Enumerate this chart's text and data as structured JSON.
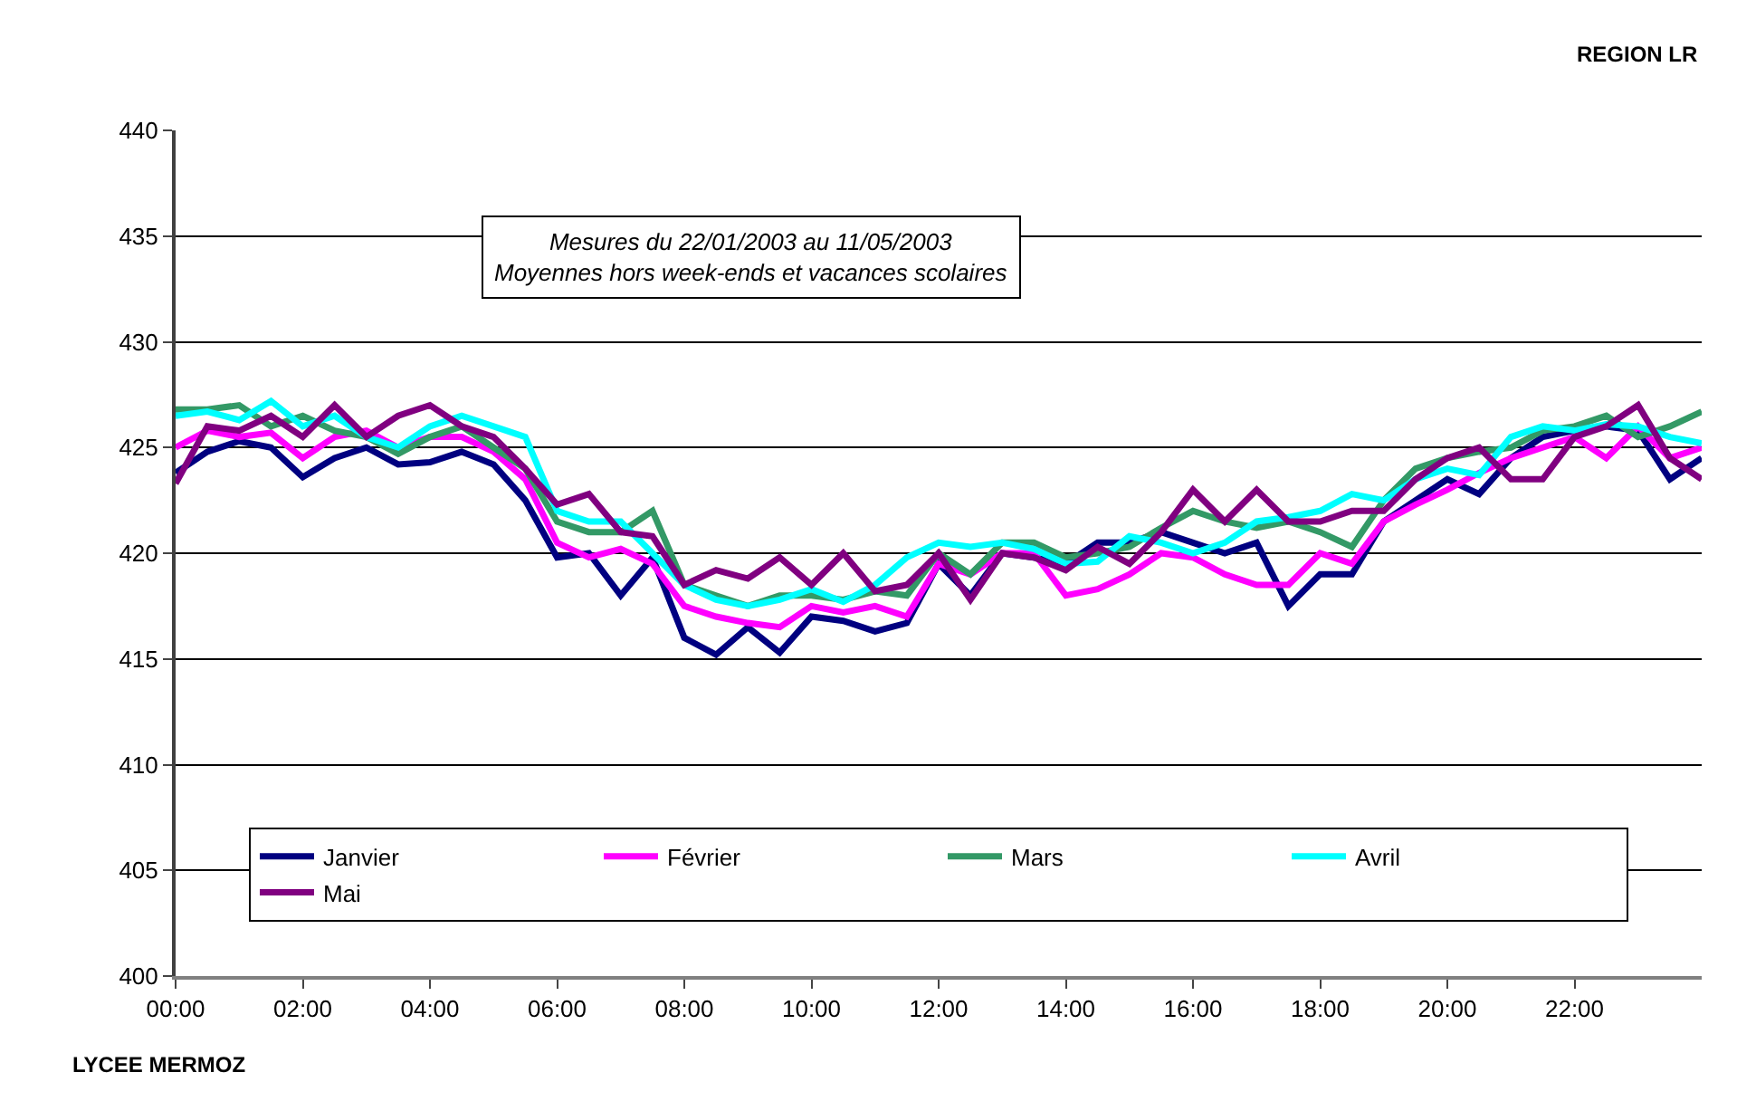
{
  "chart_data": {
    "type": "line",
    "annotations": [
      "Mesures du 22/01/2003 au 11/05/2003\nMoyennes hors week-ends et vacances scolaires",
      "REGION LR",
      "LYCEE MERMOZ"
    ],
    "x": [
      0,
      0.5,
      1,
      1.5,
      2,
      2.5,
      3,
      3.5,
      4,
      4.5,
      5,
      5.5,
      6,
      6.5,
      7,
      7.5,
      8,
      8.5,
      9,
      9.5,
      10,
      10.5,
      11,
      11.5,
      12,
      12.5,
      13,
      13.5,
      14,
      14.5,
      15,
      15.5,
      16,
      16.5,
      17,
      17.5,
      18,
      18.5,
      19,
      19.5,
      20,
      20.5,
      21,
      21.5,
      22,
      22.5,
      23,
      23.5,
      24
    ],
    "series": [
      {
        "name": "Janvier",
        "color": "#000080",
        "values": [
          423.8,
          424.8,
          425.3,
          425,
          423.6,
          424.5,
          425,
          424.2,
          424.3,
          424.8,
          424.2,
          422.5,
          419.8,
          420,
          418,
          419.8,
          416,
          415.2,
          416.5,
          415.3,
          417,
          416.8,
          416.3,
          416.7,
          419.5,
          418,
          420,
          419.8,
          419.5,
          420.5,
          420.5,
          421,
          420.5,
          420,
          420.5,
          417.5,
          419,
          419,
          421.5,
          422.5,
          423.5,
          422.8,
          424.5,
          425.5,
          425.8,
          426,
          425.8,
          423.5,
          424.5
        ]
      },
      {
        "name": "Février",
        "color": "#ff00ff",
        "values": [
          425,
          425.8,
          425.5,
          425.7,
          424.5,
          425.5,
          425.8,
          425,
          425.5,
          425.5,
          424.8,
          423.5,
          420.5,
          419.8,
          420.2,
          419.5,
          417.5,
          417,
          416.7,
          416.5,
          417.5,
          417.2,
          417.5,
          417,
          419.5,
          419,
          420,
          420,
          418,
          418.3,
          419,
          420,
          419.8,
          419,
          418.5,
          418.5,
          420,
          419.5,
          421.5,
          422.3,
          423,
          423.8,
          424.5,
          425,
          425.5,
          424.5,
          426,
          424.5,
          425
        ]
      },
      {
        "name": "Mars",
        "color": "#339966",
        "values": [
          426.8,
          426.8,
          427,
          426,
          426.5,
          425.8,
          425.5,
          424.7,
          425.5,
          426,
          425,
          424,
          421.5,
          421,
          421,
          422,
          418.5,
          418,
          417.5,
          418,
          418,
          417.8,
          418.2,
          418,
          420,
          419,
          420.5,
          420.5,
          419.8,
          420,
          420.3,
          421.2,
          422,
          421.5,
          421.2,
          421.5,
          421,
          420.3,
          422.5,
          424,
          424.5,
          424.8,
          425,
          425.8,
          426,
          426.5,
          425.5,
          426,
          426.7
        ]
      },
      {
        "name": "Avril",
        "color": "#00ffff",
        "values": [
          426.5,
          426.7,
          426.3,
          427.2,
          426,
          426.5,
          425.5,
          425,
          426,
          426.5,
          426,
          425.5,
          422,
          421.5,
          421.5,
          420,
          418.5,
          417.8,
          417.5,
          417.8,
          418.3,
          417.7,
          418.5,
          419.8,
          420.5,
          420.3,
          420.5,
          420.2,
          419.5,
          419.6,
          420.8,
          420.5,
          420,
          420.5,
          421.5,
          421.7,
          422,
          422.8,
          422.5,
          423.5,
          424,
          423.7,
          425.5,
          426,
          425.8,
          426.1,
          426,
          425.5,
          425.2
        ]
      },
      {
        "name": "Mai",
        "color": "#800080",
        "values": [
          423.3,
          426,
          425.8,
          426.5,
          425.5,
          427,
          425.5,
          426.5,
          427,
          426,
          425.5,
          424,
          422.3,
          422.8,
          421,
          420.8,
          418.5,
          419.2,
          418.8,
          419.8,
          418.5,
          420,
          418.2,
          418.5,
          420,
          417.8,
          420,
          419.8,
          419.2,
          420.3,
          419.5,
          421,
          423,
          421.5,
          423,
          421.5,
          421.5,
          422,
          422,
          423.5,
          424.5,
          425,
          423.5,
          423.5,
          425.5,
          426,
          427,
          424.5,
          423.5
        ]
      }
    ],
    "xlim": [
      0,
      24
    ],
    "xticks": [
      {
        "value": 0,
        "label": "00:00"
      },
      {
        "value": 2,
        "label": "02:00"
      },
      {
        "value": 4,
        "label": "04:00"
      },
      {
        "value": 6,
        "label": "06:00"
      },
      {
        "value": 8,
        "label": "08:00"
      },
      {
        "value": 10,
        "label": "10:00"
      },
      {
        "value": 12,
        "label": "12:00"
      },
      {
        "value": 14,
        "label": "14:00"
      },
      {
        "value": 16,
        "label": "16:00"
      },
      {
        "value": 18,
        "label": "18:00"
      },
      {
        "value": 20,
        "label": "20:00"
      },
      {
        "value": 22,
        "label": "22:00"
      }
    ],
    "ylim": [
      400,
      440
    ],
    "yticks": [
      400,
      405,
      410,
      415,
      420,
      425,
      430,
      435,
      440
    ],
    "grid": "y",
    "legend": "bottom",
    "marker": "none",
    "line_style": "solid"
  }
}
